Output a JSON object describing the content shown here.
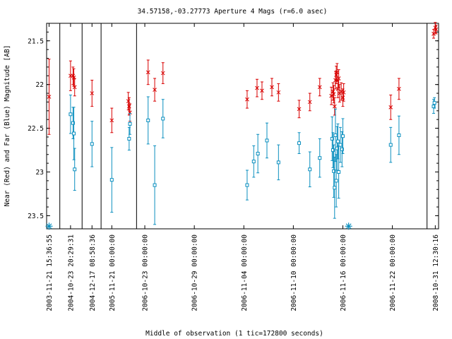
{
  "chart_data": {
    "type": "scatter",
    "title": "34.57158,-03.27773   Aperture 4 Mags (r=6.0 asec)",
    "xlabel": "Middle of observation (1 tic=172800 seconds)",
    "ylabel": "Near (Red) and Far (Blue) Magnitude [AB]",
    "ylim": [
      23.65,
      21.3
    ],
    "y_reversed": true,
    "y_ticks": [
      21.5,
      22,
      22.5,
      23,
      23.5
    ],
    "y_tick_labels": [
      "21.5",
      "22",
      "22.5",
      "23",
      "23.5"
    ],
    "x_tick_labels": [
      "2003-11-21 15:36:55",
      "2004-10-23 20:29:31",
      "2004-12-17 08:58:36",
      "2005-11-21 00:00:00",
      "2006-10-23 00:00:00",
      "2006-10-29 00:00:00",
      "2006-11-04 00:00:00",
      "2006-11-10 00:00:00",
      "2006-11-16 00:00:00",
      "2006-11-22 00:00:00",
      "2008-10-31 12:30:16"
    ],
    "x_tick_units": [
      0,
      2.6,
      5.2,
      7.6,
      11.6,
      17.6,
      23.6,
      29.6,
      35.6,
      41.6,
      46.8
    ],
    "xlim": [
      -0.3,
      47.2
    ],
    "segment_breaks": [
      1.3,
      4.0,
      6.3,
      10.6,
      45.8
    ],
    "series": [
      {
        "name": "Near (Red)",
        "color": "#d80000",
        "marker": "x",
        "points": [
          {
            "x": 0.0,
            "y": 22.14,
            "err": 0.43
          },
          {
            "x": 2.6,
            "y": 21.9,
            "err": 0.17
          },
          {
            "x": 2.9,
            "y": 21.9,
            "err": 0.1
          },
          {
            "x": 3.0,
            "y": 21.92,
            "err": 0.1
          },
          {
            "x": 3.1,
            "y": 22.03,
            "err": 0.1
          },
          {
            "x": 5.2,
            "y": 22.1,
            "err": 0.15
          },
          {
            "x": 7.6,
            "y": 22.41,
            "err": 0.14
          },
          {
            "x": 9.6,
            "y": 22.19,
            "err": 0.1
          },
          {
            "x": 9.7,
            "y": 22.25,
            "err": 0.1
          },
          {
            "x": 9.8,
            "y": 22.32,
            "err": 0.1
          },
          {
            "x": 12.0,
            "y": 21.86,
            "err": 0.14
          },
          {
            "x": 12.8,
            "y": 22.06,
            "err": 0.13
          },
          {
            "x": 13.8,
            "y": 21.87,
            "err": 0.12
          },
          {
            "x": 24.0,
            "y": 22.17,
            "err": 0.1
          },
          {
            "x": 25.2,
            "y": 22.04,
            "err": 0.1
          },
          {
            "x": 25.8,
            "y": 22.07,
            "err": 0.1
          },
          {
            "x": 27.0,
            "y": 22.03,
            "err": 0.1
          },
          {
            "x": 27.8,
            "y": 22.09,
            "err": 0.1
          },
          {
            "x": 30.3,
            "y": 22.28,
            "err": 0.1
          },
          {
            "x": 31.6,
            "y": 22.2,
            "err": 0.1
          },
          {
            "x": 32.8,
            "y": 22.03,
            "err": 0.1
          },
          {
            "x": 34.2,
            "y": 22.13,
            "err": 0.1
          },
          {
            "x": 34.4,
            "y": 22.08,
            "err": 0.1
          },
          {
            "x": 34.5,
            "y": 22.11,
            "err": 0.1
          },
          {
            "x": 34.6,
            "y": 22.25,
            "err": 0.1
          },
          {
            "x": 34.7,
            "y": 21.95,
            "err": 0.1
          },
          {
            "x": 34.8,
            "y": 21.89,
            "err": 0.1
          },
          {
            "x": 34.9,
            "y": 21.86,
            "err": 0.1
          },
          {
            "x": 35.0,
            "y": 22.05,
            "err": 0.1
          },
          {
            "x": 35.1,
            "y": 21.93,
            "err": 0.1
          },
          {
            "x": 35.2,
            "y": 22.1,
            "err": 0.1
          },
          {
            "x": 35.4,
            "y": 22.08,
            "err": 0.1
          },
          {
            "x": 35.6,
            "y": 22.15,
            "err": 0.1
          },
          {
            "x": 35.7,
            "y": 22.09,
            "err": 0.1
          },
          {
            "x": 41.4,
            "y": 22.26,
            "err": 0.14
          },
          {
            "x": 42.4,
            "y": 22.05,
            "err": 0.12
          },
          {
            "x": 46.6,
            "y": 21.42,
            "err": 0.05
          },
          {
            "x": 46.8,
            "y": 21.35,
            "err": 0.06
          },
          {
            "x": 46.9,
            "y": 21.37,
            "err": 0.05
          }
        ]
      },
      {
        "name": "Far (Blue)",
        "color": "#0b8fbf",
        "marker": "square",
        "points": [
          {
            "x": 2.6,
            "y": 22.34,
            "err": 0.22
          },
          {
            "x": 2.9,
            "y": 22.44,
            "err": 0.18
          },
          {
            "x": 3.0,
            "y": 22.56,
            "err": 0.3
          },
          {
            "x": 3.1,
            "y": 22.97,
            "err": 0.24
          },
          {
            "x": 5.2,
            "y": 22.68,
            "err": 0.26
          },
          {
            "x": 7.6,
            "y": 23.09,
            "err": 0.37
          },
          {
            "x": 9.7,
            "y": 22.62,
            "err": 0.13
          },
          {
            "x": 9.8,
            "y": 22.45,
            "err": 0.12
          },
          {
            "x": 12.0,
            "y": 22.41,
            "err": 0.27
          },
          {
            "x": 12.8,
            "y": 23.15,
            "err": 0.45
          },
          {
            "x": 13.8,
            "y": 22.39,
            "err": 0.22
          },
          {
            "x": 24.0,
            "y": 23.15,
            "err": 0.17
          },
          {
            "x": 24.8,
            "y": 22.88,
            "err": 0.18
          },
          {
            "x": 25.3,
            "y": 22.79,
            "err": 0.22
          },
          {
            "x": 26.4,
            "y": 22.64,
            "err": 0.2
          },
          {
            "x": 27.8,
            "y": 22.89,
            "err": 0.2
          },
          {
            "x": 30.3,
            "y": 22.67,
            "err": 0.12
          },
          {
            "x": 31.6,
            "y": 22.97,
            "err": 0.2
          },
          {
            "x": 32.8,
            "y": 22.84,
            "err": 0.22
          },
          {
            "x": 34.3,
            "y": 22.62,
            "err": 0.25
          },
          {
            "x": 34.4,
            "y": 22.75,
            "err": 0.2
          },
          {
            "x": 34.5,
            "y": 22.99,
            "err": 0.3
          },
          {
            "x": 34.6,
            "y": 23.18,
            "err": 0.35
          },
          {
            "x": 34.7,
            "y": 22.58,
            "err": 0.3
          },
          {
            "x": 34.8,
            "y": 23.1,
            "err": 0.3
          },
          {
            "x": 34.9,
            "y": 22.73,
            "err": 0.25
          },
          {
            "x": 35.0,
            "y": 22.65,
            "err": 0.2
          },
          {
            "x": 35.1,
            "y": 23.0,
            "err": 0.3
          },
          {
            "x": 35.3,
            "y": 22.69,
            "err": 0.2
          },
          {
            "x": 35.5,
            "y": 22.74,
            "err": 0.2
          },
          {
            "x": 35.6,
            "y": 22.59,
            "err": 0.2
          },
          {
            "x": 41.4,
            "y": 22.69,
            "err": 0.2
          },
          {
            "x": 42.4,
            "y": 22.58,
            "err": 0.22
          },
          {
            "x": 46.6,
            "y": 22.25,
            "err": 0.08
          },
          {
            "x": 46.7,
            "y": 22.21,
            "err": 0.06
          }
        ]
      }
    ],
    "limit_markers": [
      {
        "x": 0.0,
        "y": 23.62,
        "color": "#0b8fbf",
        "marker": "asterisk"
      },
      {
        "x": 36.3,
        "y": 23.62,
        "color": "#0b8fbf",
        "marker": "asterisk"
      }
    ],
    "grid": false,
    "legend": "none"
  }
}
